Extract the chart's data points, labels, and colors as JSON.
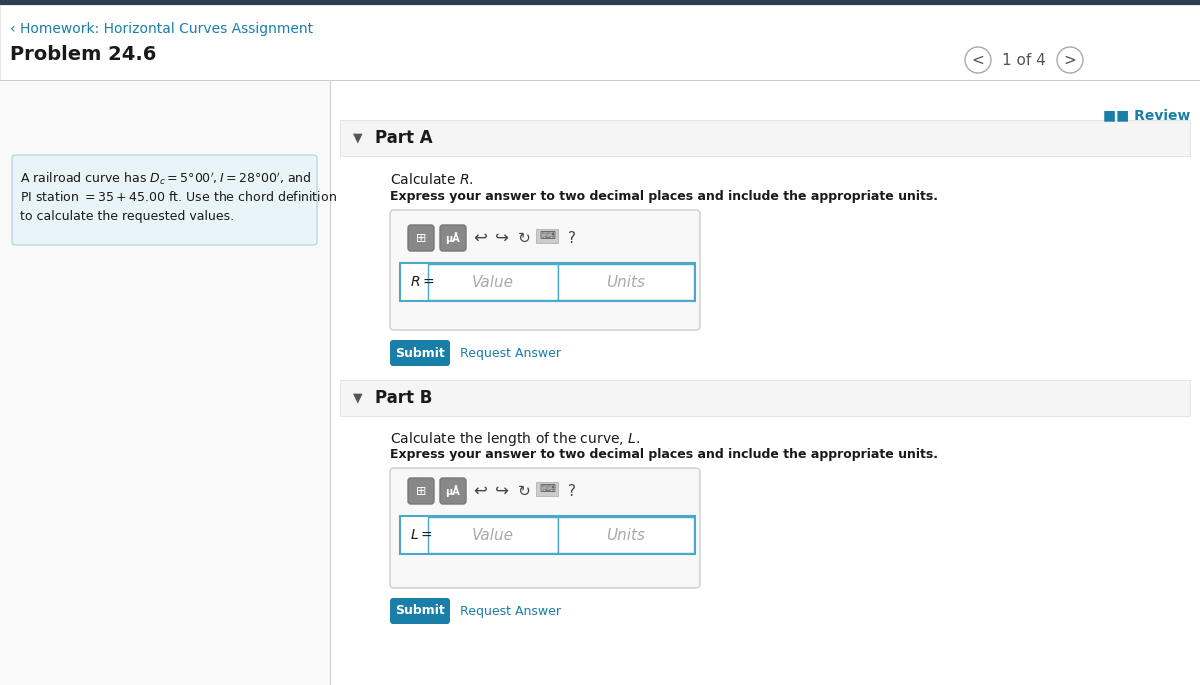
{
  "bg_color": "#ffffff",
  "top_bar_color": "#2c3e50",
  "top_bar_height": 0.045,
  "header_link_text": "‹ Homework: Horizontal Curves Assignment",
  "header_link_color": "#1a7fa8",
  "problem_title": "Problem 24.6",
  "problem_title_color": "#1a1a1a",
  "nav_text": "1 of 4",
  "nav_color": "#555555",
  "review_text": "■■ Review",
  "review_color": "#1a7fa8",
  "left_panel_bg": "#e8f4f8",
  "left_panel_border": "#b8d8e8",
  "left_panel_text_line1": "A railroad curve has $D_c = 5°00', I = 28°00'$, and",
  "left_panel_text_line2": "PI station $= 35 + 45.00$ ft. Use the chord definition",
  "left_panel_text_line3": "to calculate the requested values.",
  "left_panel_text_color": "#1a1a1a",
  "divider_color": "#dddddd",
  "part_a_title": "Part A",
  "part_b_title": "Part B",
  "section_bg": "#f5f5f5",
  "section_title_color": "#1a1a1a",
  "calc_r_text": "Calculate $R$.",
  "calc_r_bold": "Express your answer to two decimal places and include the appropriate units.",
  "calc_l_text": "Calculate the length of the curve, $L$.",
  "calc_l_bold": "Express your answer to two decimal places and include the appropriate units.",
  "input_box_bg": "#ffffff",
  "input_box_border": "#4aa8c8",
  "toolbar_bg": "#888888",
  "value_placeholder": "Value",
  "units_placeholder": "Units",
  "submit_bg": "#1a7fa8",
  "submit_text_color": "#ffffff",
  "submit_text": "Submit",
  "request_answer_text": "Request Answer",
  "request_answer_color": "#1a7fa8",
  "r_label": "$R =$",
  "l_label": "$L =$"
}
